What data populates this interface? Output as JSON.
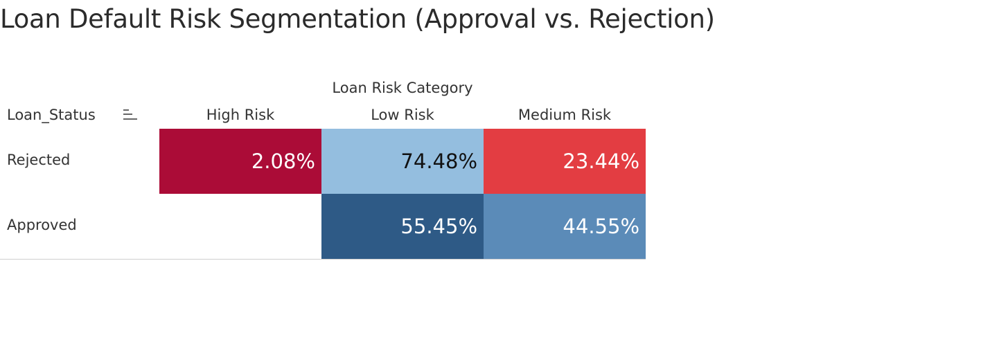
{
  "title": "Loan Default Risk Segmentation (Approval vs. Rejection)",
  "row_field_label": "Loan_Status",
  "column_group_label": "Loan Risk Category",
  "icons": {
    "sort": "sort-icon"
  },
  "chart_data": {
    "type": "heatmap",
    "title": "Loan Default Risk Segmentation (Approval vs. Rejection)",
    "x_field": "Loan Risk Category",
    "y_field": "Loan_Status",
    "columns": [
      "High Risk",
      "Low Risk",
      "Medium Risk"
    ],
    "rows": [
      "Rejected",
      "Approved"
    ],
    "cells": [
      {
        "row": "Rejected",
        "column": "High Risk",
        "value": 2.08,
        "label": "2.08%",
        "color": "#ab0c37",
        "text_color": "#ffffff"
      },
      {
        "row": "Rejected",
        "column": "Low Risk",
        "value": 74.48,
        "label": "74.48%",
        "color": "#94bedf",
        "text_color": "#111111"
      },
      {
        "row": "Rejected",
        "column": "Medium Risk",
        "value": 23.44,
        "label": "23.44%",
        "color": "#e33d42",
        "text_color": "#ffffff"
      },
      {
        "row": "Approved",
        "column": "High Risk",
        "value": null,
        "label": "",
        "color": "#ffffff",
        "text_color": "#ffffff"
      },
      {
        "row": "Approved",
        "column": "Low Risk",
        "value": 55.45,
        "label": "55.45%",
        "color": "#2e5a86",
        "text_color": "#ffffff"
      },
      {
        "row": "Approved",
        "column": "Medium Risk",
        "value": 44.55,
        "label": "44.55%",
        "color": "#5b8bb8",
        "text_color": "#ffffff"
      }
    ]
  }
}
